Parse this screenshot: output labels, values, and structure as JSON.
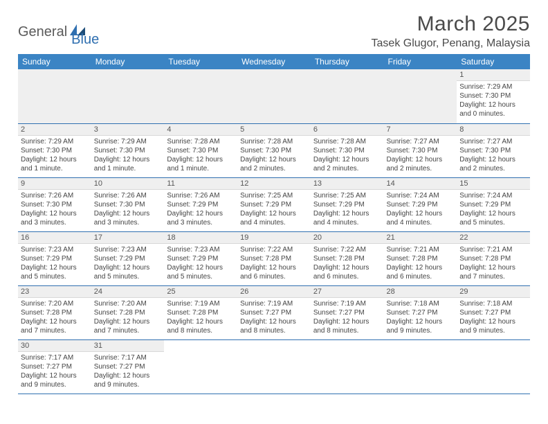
{
  "brand": {
    "part1": "General",
    "part2": "Blue"
  },
  "colors": {
    "header_bg": "#3b84c4",
    "border": "#2f6fb0",
    "daynum_bg": "#efefef",
    "text": "#444444"
  },
  "title": "March 2025",
  "location": "Tasek Glugor, Penang, Malaysia",
  "day_headers": [
    "Sunday",
    "Monday",
    "Tuesday",
    "Wednesday",
    "Thursday",
    "Friday",
    "Saturday"
  ],
  "weeks": [
    [
      null,
      null,
      null,
      null,
      null,
      null,
      {
        "n": "1",
        "sr": "Sunrise: 7:29 AM",
        "ss": "Sunset: 7:30 PM",
        "dl1": "Daylight: 12 hours",
        "dl2": "and 0 minutes."
      }
    ],
    [
      {
        "n": "2",
        "sr": "Sunrise: 7:29 AM",
        "ss": "Sunset: 7:30 PM",
        "dl1": "Daylight: 12 hours",
        "dl2": "and 1 minute."
      },
      {
        "n": "3",
        "sr": "Sunrise: 7:29 AM",
        "ss": "Sunset: 7:30 PM",
        "dl1": "Daylight: 12 hours",
        "dl2": "and 1 minute."
      },
      {
        "n": "4",
        "sr": "Sunrise: 7:28 AM",
        "ss": "Sunset: 7:30 PM",
        "dl1": "Daylight: 12 hours",
        "dl2": "and 1 minute."
      },
      {
        "n": "5",
        "sr": "Sunrise: 7:28 AM",
        "ss": "Sunset: 7:30 PM",
        "dl1": "Daylight: 12 hours",
        "dl2": "and 2 minutes."
      },
      {
        "n": "6",
        "sr": "Sunrise: 7:28 AM",
        "ss": "Sunset: 7:30 PM",
        "dl1": "Daylight: 12 hours",
        "dl2": "and 2 minutes."
      },
      {
        "n": "7",
        "sr": "Sunrise: 7:27 AM",
        "ss": "Sunset: 7:30 PM",
        "dl1": "Daylight: 12 hours",
        "dl2": "and 2 minutes."
      },
      {
        "n": "8",
        "sr": "Sunrise: 7:27 AM",
        "ss": "Sunset: 7:30 PM",
        "dl1": "Daylight: 12 hours",
        "dl2": "and 2 minutes."
      }
    ],
    [
      {
        "n": "9",
        "sr": "Sunrise: 7:26 AM",
        "ss": "Sunset: 7:30 PM",
        "dl1": "Daylight: 12 hours",
        "dl2": "and 3 minutes."
      },
      {
        "n": "10",
        "sr": "Sunrise: 7:26 AM",
        "ss": "Sunset: 7:30 PM",
        "dl1": "Daylight: 12 hours",
        "dl2": "and 3 minutes."
      },
      {
        "n": "11",
        "sr": "Sunrise: 7:26 AM",
        "ss": "Sunset: 7:29 PM",
        "dl1": "Daylight: 12 hours",
        "dl2": "and 3 minutes."
      },
      {
        "n": "12",
        "sr": "Sunrise: 7:25 AM",
        "ss": "Sunset: 7:29 PM",
        "dl1": "Daylight: 12 hours",
        "dl2": "and 4 minutes."
      },
      {
        "n": "13",
        "sr": "Sunrise: 7:25 AM",
        "ss": "Sunset: 7:29 PM",
        "dl1": "Daylight: 12 hours",
        "dl2": "and 4 minutes."
      },
      {
        "n": "14",
        "sr": "Sunrise: 7:24 AM",
        "ss": "Sunset: 7:29 PM",
        "dl1": "Daylight: 12 hours",
        "dl2": "and 4 minutes."
      },
      {
        "n": "15",
        "sr": "Sunrise: 7:24 AM",
        "ss": "Sunset: 7:29 PM",
        "dl1": "Daylight: 12 hours",
        "dl2": "and 5 minutes."
      }
    ],
    [
      {
        "n": "16",
        "sr": "Sunrise: 7:23 AM",
        "ss": "Sunset: 7:29 PM",
        "dl1": "Daylight: 12 hours",
        "dl2": "and 5 minutes."
      },
      {
        "n": "17",
        "sr": "Sunrise: 7:23 AM",
        "ss": "Sunset: 7:29 PM",
        "dl1": "Daylight: 12 hours",
        "dl2": "and 5 minutes."
      },
      {
        "n": "18",
        "sr": "Sunrise: 7:23 AM",
        "ss": "Sunset: 7:29 PM",
        "dl1": "Daylight: 12 hours",
        "dl2": "and 5 minutes."
      },
      {
        "n": "19",
        "sr": "Sunrise: 7:22 AM",
        "ss": "Sunset: 7:28 PM",
        "dl1": "Daylight: 12 hours",
        "dl2": "and 6 minutes."
      },
      {
        "n": "20",
        "sr": "Sunrise: 7:22 AM",
        "ss": "Sunset: 7:28 PM",
        "dl1": "Daylight: 12 hours",
        "dl2": "and 6 minutes."
      },
      {
        "n": "21",
        "sr": "Sunrise: 7:21 AM",
        "ss": "Sunset: 7:28 PM",
        "dl1": "Daylight: 12 hours",
        "dl2": "and 6 minutes."
      },
      {
        "n": "22",
        "sr": "Sunrise: 7:21 AM",
        "ss": "Sunset: 7:28 PM",
        "dl1": "Daylight: 12 hours",
        "dl2": "and 7 minutes."
      }
    ],
    [
      {
        "n": "23",
        "sr": "Sunrise: 7:20 AM",
        "ss": "Sunset: 7:28 PM",
        "dl1": "Daylight: 12 hours",
        "dl2": "and 7 minutes."
      },
      {
        "n": "24",
        "sr": "Sunrise: 7:20 AM",
        "ss": "Sunset: 7:28 PM",
        "dl1": "Daylight: 12 hours",
        "dl2": "and 7 minutes."
      },
      {
        "n": "25",
        "sr": "Sunrise: 7:19 AM",
        "ss": "Sunset: 7:28 PM",
        "dl1": "Daylight: 12 hours",
        "dl2": "and 8 minutes."
      },
      {
        "n": "26",
        "sr": "Sunrise: 7:19 AM",
        "ss": "Sunset: 7:27 PM",
        "dl1": "Daylight: 12 hours",
        "dl2": "and 8 minutes."
      },
      {
        "n": "27",
        "sr": "Sunrise: 7:19 AM",
        "ss": "Sunset: 7:27 PM",
        "dl1": "Daylight: 12 hours",
        "dl2": "and 8 minutes."
      },
      {
        "n": "28",
        "sr": "Sunrise: 7:18 AM",
        "ss": "Sunset: 7:27 PM",
        "dl1": "Daylight: 12 hours",
        "dl2": "and 9 minutes."
      },
      {
        "n": "29",
        "sr": "Sunrise: 7:18 AM",
        "ss": "Sunset: 7:27 PM",
        "dl1": "Daylight: 12 hours",
        "dl2": "and 9 minutes."
      }
    ],
    [
      {
        "n": "30",
        "sr": "Sunrise: 7:17 AM",
        "ss": "Sunset: 7:27 PM",
        "dl1": "Daylight: 12 hours",
        "dl2": "and 9 minutes."
      },
      {
        "n": "31",
        "sr": "Sunrise: 7:17 AM",
        "ss": "Sunset: 7:27 PM",
        "dl1": "Daylight: 12 hours",
        "dl2": "and 9 minutes."
      },
      null,
      null,
      null,
      null,
      null
    ]
  ]
}
